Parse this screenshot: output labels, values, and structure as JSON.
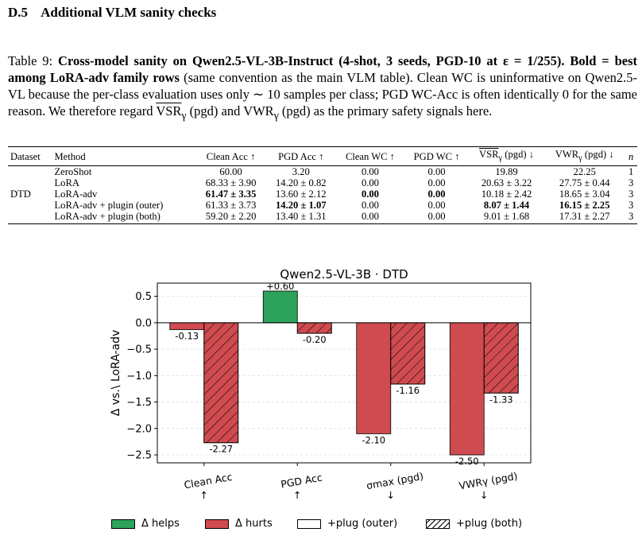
{
  "section": {
    "number": "D.5",
    "title": "Additional VLM sanity checks"
  },
  "caption": {
    "label": "Table 9:",
    "bold_title": "Cross-model sanity on Qwen2.5-VL-3B-Instruct (4-shot, 3 seeds, PGD-10 at ε = 1/255).",
    "bold_note": "Bold = best among LoRA-adv family rows",
    "text1": "(same convention as the main VLM table). Clean WC is uninformative on Qwen2.5-VL because the per-class evaluation uses only ∼ 10 samples per class; PGD WC-Acc is often identically 0 for the same reason. We therefore regard",
    "vsr_term": "VSR",
    "text2": "(pgd) and",
    "vwr_term": "VWR",
    "text3": "(pgd) as the primary safety signals here."
  },
  "table": {
    "headers": [
      "Dataset",
      "Method",
      "Clean Acc ↑",
      "PGD Acc ↑",
      "Clean WC ↑",
      "PGD WC ↑",
      "VSR",
      "(pgd) ↓",
      "VWR",
      "(pgd) ↓",
      "n"
    ],
    "gamma": "γ",
    "dataset_label": "DTD",
    "rows": [
      {
        "method": "ZeroShot",
        "clean_acc": "60.00",
        "pgd_acc": "3.20",
        "clean_wc": "0.00",
        "pgd_wc": "0.00",
        "vsr": "19.89",
        "vwr": "22.25",
        "n": "1",
        "bold": []
      },
      {
        "method": "LoRA",
        "clean_acc": "68.33 ± 3.90",
        "pgd_acc": "14.20 ± 0.82",
        "clean_wc": "0.00",
        "pgd_wc": "0.00",
        "vsr": "20.63 ± 3.22",
        "vwr": "27.75 ± 0.44",
        "n": "3",
        "bold": []
      },
      {
        "method": "LoRA-adv",
        "clean_acc": "61.47 ± 3.35",
        "pgd_acc": "13.60 ± 2.12",
        "clean_wc": "0.00",
        "pgd_wc": "0.00",
        "vsr": "10.18 ± 2.42",
        "vwr": "18.65 ± 3.04",
        "n": "3",
        "bold": [
          "clean_acc",
          "clean_wc",
          "pgd_wc"
        ]
      },
      {
        "method": "LoRA-adv + plugin (outer)",
        "clean_acc": "61.33 ± 3.73",
        "pgd_acc": "14.20 ± 1.07",
        "clean_wc": "0.00",
        "pgd_wc": "0.00",
        "vsr": "8.07 ± 1.44",
        "vwr": "16.15 ± 2.25",
        "n": "3",
        "bold": [
          "pgd_acc",
          "vsr",
          "vwr"
        ]
      },
      {
        "method": "LoRA-adv + plugin (both)",
        "clean_acc": "59.20 ± 2.20",
        "pgd_acc": "13.40 ± 1.31",
        "clean_wc": "0.00",
        "pgd_wc": "0.00",
        "vsr": "9.01 ± 1.68",
        "vwr": "17.31 ± 2.27",
        "n": "3",
        "bold": []
      }
    ]
  },
  "colors": {
    "helps": "#2ca25a",
    "hurts": "#cf4b4f",
    "zero_line": "#000000"
  },
  "chart_data": {
    "type": "bar",
    "title": "Qwen2.5-VL-3B · DTD",
    "ylabel": "Δ vs.\\ LoRA-adv",
    "ylim": [
      -2.65,
      0.75
    ],
    "yticks": [
      0.5,
      0.0,
      -0.5,
      -1.0,
      -1.5,
      -2.0,
      -2.5
    ],
    "ytick_labels": [
      "0.5",
      "0.0",
      "−0.5",
      "−1.0",
      "−1.5",
      "−2.0",
      "−2.5"
    ],
    "categories": [
      {
        "name": "Clean Acc",
        "arrow": "↑"
      },
      {
        "name": "PGD Acc",
        "arrow": "↑"
      },
      {
        "name": "σmax (pgd)",
        "arrow": "↓"
      },
      {
        "name": "VWRγ (pgd)",
        "arrow": "↓"
      }
    ],
    "series": [
      {
        "name": "+plug (outer)",
        "values": [
          -0.13,
          0.6,
          -2.1,
          -2.5
        ],
        "labels": [
          "-0.13",
          "+0.60",
          "-2.10",
          "-2.50"
        ],
        "hatched": false
      },
      {
        "name": "+plug (both)",
        "values": [
          -2.27,
          -0.2,
          -1.16,
          -1.33
        ],
        "labels": [
          "-2.27",
          "-0.20",
          "-1.16",
          "-1.33"
        ],
        "hatched": true
      }
    ],
    "legend": [
      {
        "label": "Δ helps",
        "kind": "helps"
      },
      {
        "label": "Δ hurts",
        "kind": "hurts"
      },
      {
        "label": "+plug (outer)",
        "kind": "plain"
      },
      {
        "label": "+plug (both)",
        "kind": "hatch"
      }
    ],
    "grid": "y-dashed"
  }
}
